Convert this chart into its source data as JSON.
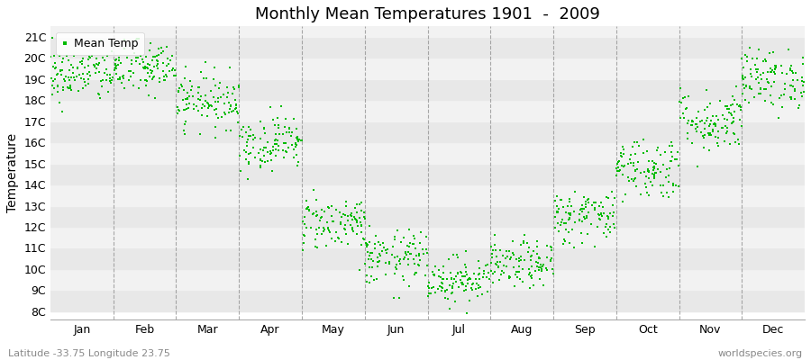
{
  "title": "Monthly Mean Temperatures 1901  -  2009",
  "ylabel": "Temperature",
  "xlabel_bottom_left": "Latitude -33.75 Longitude 23.75",
  "xlabel_bottom_right": "worldspecies.org",
  "ytick_labels": [
    "8C",
    "9C",
    "10C",
    "11C",
    "12C",
    "13C",
    "14C",
    "15C",
    "16C",
    "17C",
    "18C",
    "19C",
    "20C",
    "21C"
  ],
  "ytick_values": [
    8,
    9,
    10,
    11,
    12,
    13,
    14,
    15,
    16,
    17,
    18,
    19,
    20,
    21
  ],
  "ylim": [
    7.6,
    21.5
  ],
  "months": [
    "Jan",
    "Feb",
    "Mar",
    "Apr",
    "May",
    "Jun",
    "Jul",
    "Aug",
    "Sep",
    "Oct",
    "Nov",
    "Dec"
  ],
  "dot_color": "#00bb00",
  "dot_size": 3,
  "legend_label": "Mean Temp",
  "background_color": "#ffffff",
  "band_color_odd": "#e8e8e8",
  "band_color_even": "#f2f2f2",
  "vline_color": "#888888",
  "monthly_means": [
    19.2,
    19.5,
    18.0,
    16.0,
    12.2,
    10.5,
    9.5,
    10.2,
    12.5,
    14.8,
    17.0,
    19.0
  ],
  "monthly_stds": [
    0.65,
    0.65,
    0.65,
    0.65,
    0.65,
    0.65,
    0.55,
    0.55,
    0.65,
    0.75,
    0.75,
    0.7
  ],
  "n_years": 109,
  "seed": 42
}
